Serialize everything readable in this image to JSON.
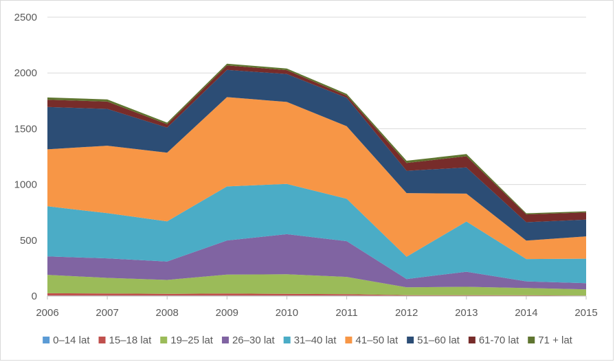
{
  "chart_data": {
    "type": "area",
    "stacked": true,
    "categories": [
      "2006",
      "2007",
      "2008",
      "2009",
      "2010",
      "2011",
      "2012",
      "2013",
      "2014",
      "2015"
    ],
    "ylim": [
      0,
      2500
    ],
    "yticks": [
      "0",
      "500",
      "1000",
      "1500",
      "2000",
      "2500"
    ],
    "grid": true,
    "legend_position": "bottom",
    "series": [
      {
        "name": "0–14 lat",
        "color": "#5B9BD5",
        "values": [
          5,
          5,
          5,
          5,
          5,
          5,
          3,
          3,
          2,
          2
        ]
      },
      {
        "name": "15–18 lat",
        "color": "#C0504D",
        "values": [
          20,
          18,
          15,
          18,
          15,
          12,
          5,
          5,
          5,
          3
        ]
      },
      {
        "name": "19–25 lat",
        "color": "#9BBB59",
        "values": [
          165,
          140,
          125,
          170,
          175,
          155,
          70,
          75,
          65,
          55
        ]
      },
      {
        "name": "26–30 lat",
        "color": "#8064A2",
        "values": [
          165,
          175,
          165,
          305,
          360,
          320,
          75,
          135,
          60,
          55
        ]
      },
      {
        "name": "31–40 lat",
        "color": "#4BACC6",
        "values": [
          450,
          405,
          360,
          485,
          450,
          380,
          200,
          450,
          200,
          220
        ]
      },
      {
        "name": "41–50 lat",
        "color": "#F79646",
        "values": [
          510,
          605,
          615,
          800,
          735,
          650,
          570,
          250,
          165,
          200
        ]
      },
      {
        "name": "51–60 lat",
        "color": "#2C4D75",
        "values": [
          380,
          330,
          225,
          245,
          250,
          255,
          200,
          235,
          165,
          150
        ]
      },
      {
        "name": "61-70 lat",
        "color": "#772C2A",
        "values": [
          65,
          65,
          30,
          40,
          35,
          20,
          70,
          100,
          70,
          65
        ]
      },
      {
        "name": "71 + lat",
        "color": "#5F7530",
        "values": [
          20,
          20,
          15,
          15,
          15,
          15,
          20,
          20,
          10,
          10
        ]
      }
    ]
  }
}
